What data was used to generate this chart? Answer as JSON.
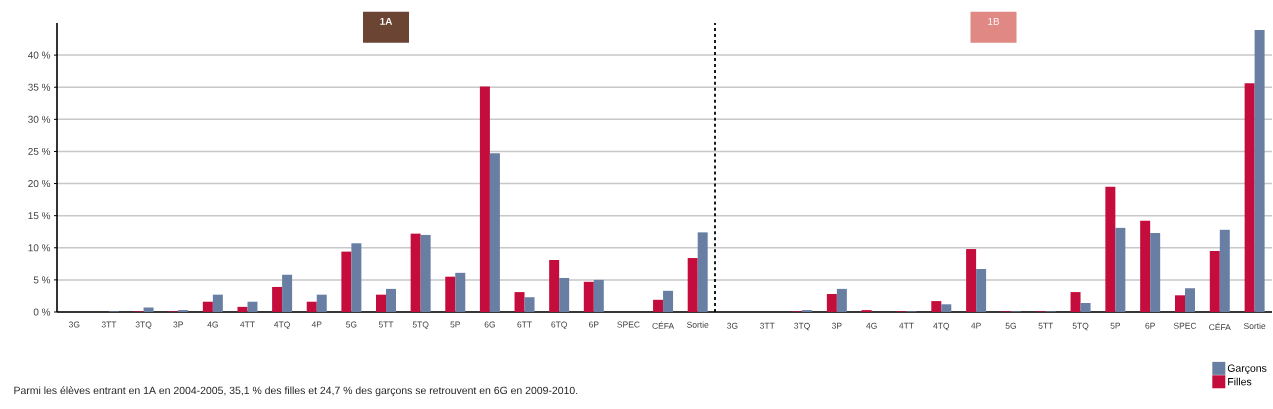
{
  "chart_data": [
    {
      "type": "bar",
      "title": "1A",
      "categories": [
        "3G",
        "3TT",
        "3TQ",
        "3P",
        "4G",
        "4TT",
        "4TQ",
        "4P",
        "5G",
        "5TT",
        "5TQ",
        "5P",
        "6G",
        "6TT",
        "6TQ",
        "6P",
        "SPEC",
        "CÉFA",
        "Sortie"
      ],
      "series": [
        {
          "color": "#c40d3c",
          "values": [
            0,
            0,
            0.1,
            0.1,
            1.6,
            0.8,
            3.9,
            1.6,
            9.4,
            2.7,
            12.2,
            5.5,
            35.1,
            3.1,
            8.1,
            4.7,
            0,
            1.9,
            8.4
          ]
        },
        {
          "color": "#687fa3",
          "values": [
            0,
            0.1,
            0.7,
            0.3,
            2.7,
            1.6,
            5.8,
            2.7,
            10.7,
            3.6,
            12.0,
            6.1,
            24.7,
            2.3,
            5.3,
            5.0,
            0,
            3.3,
            12.4
          ]
        }
      ],
      "ylim": [
        0,
        45
      ],
      "yticks": [
        {
          "value": 0,
          "label": "0 %"
        },
        {
          "value": 5,
          "label": "5 %"
        },
        {
          "value": 10,
          "label": "10 %"
        },
        {
          "value": 15,
          "label": "15 %"
        },
        {
          "value": 20,
          "label": "20 %"
        },
        {
          "value": 25,
          "label": "25 %"
        },
        {
          "value": 30,
          "label": "30 %"
        },
        {
          "value": 35,
          "label": "35 %"
        },
        {
          "value": 40,
          "label": "40 %"
        }
      ],
      "grid": "y",
      "annotations": [
        "Parmi les élèves entrant en 1A en 2004-2005, 35,1 % des filles et 24,7 % des garçons se retrouvent en 6G en 2009-2010."
      ]
    },
    {
      "type": "bar",
      "title": "1B",
      "categories": [
        "3G",
        "3TT",
        "3TQ",
        "3P",
        "4G",
        "4TT",
        "4TQ",
        "4P",
        "5G",
        "5TT",
        "5TQ",
        "5P",
        "6P",
        "SPEC",
        "CÉFA",
        "Sortie"
      ],
      "series": [
        {
          "name": "Filles",
          "color": "#c40d3c",
          "values": [
            0,
            0,
            0.1,
            2.8,
            0.3,
            0.1,
            1.7,
            9.8,
            0.1,
            0.1,
            3.1,
            19.5,
            14.2,
            2.6,
            9.5,
            35.6
          ]
        },
        {
          "name": "Garçons",
          "color": "#687fa3",
          "values": [
            0,
            0,
            0.3,
            3.6,
            0,
            0.1,
            1.2,
            6.7,
            0.1,
            0.1,
            1.4,
            13.1,
            12.3,
            3.7,
            12.8,
            43.9
          ]
        }
      ],
      "ylim": [
        0,
        45
      ],
      "yticks": [
        0,
        5,
        10,
        15,
        20,
        25,
        30,
        35,
        40
      ],
      "grid": "y",
      "tick_labels": "x",
      "legend": "bottom right"
    }
  ]
}
